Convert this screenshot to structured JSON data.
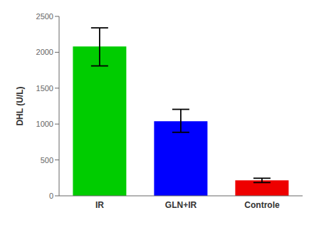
{
  "chart_data": {
    "type": "bar",
    "categories": [
      "IR",
      "GLN+IR",
      "Controle"
    ],
    "values": [
      2080,
      1040,
      215
    ],
    "errors_upper": [
      260,
      165,
      30
    ],
    "errors_lower": [
      270,
      155,
      30
    ],
    "colors": [
      "#00cc00",
      "#0000ff",
      "#ee0000"
    ],
    "ylabel": "DHL (U/L)",
    "ylim": [
      0,
      2500
    ],
    "yticks": [
      0,
      500,
      1000,
      1500,
      2000,
      2500
    ]
  }
}
